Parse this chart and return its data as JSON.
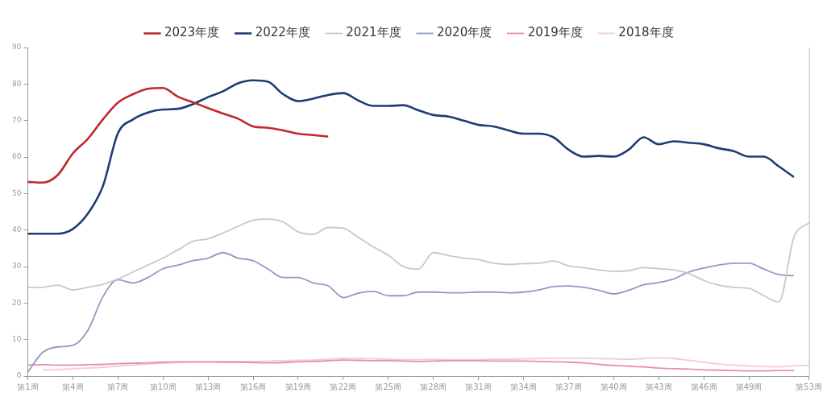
{
  "chart_data": {
    "type": "line",
    "categories": [
      "第1周",
      null,
      null,
      "第4周",
      null,
      null,
      "第7周",
      null,
      null,
      "第10周",
      null,
      null,
      "第13周",
      null,
      null,
      "第16周",
      null,
      null,
      "第19周",
      null,
      null,
      "第22周",
      null,
      null,
      "第25周",
      null,
      null,
      "第28周",
      null,
      null,
      "第31周",
      null,
      null,
      "第34周",
      null,
      null,
      "第37周",
      null,
      null,
      "第40周",
      null,
      null,
      "第43周",
      null,
      null,
      "第46周",
      null,
      null,
      "第49周",
      null,
      null,
      null,
      "第53周"
    ],
    "series": [
      {
        "name": "2023年度",
        "color": "#c0282d",
        "values": [
          53.2,
          53,
          55.1,
          61,
          65,
          70.3,
          74.9,
          77.2,
          78.7,
          78.9,
          76.5,
          75,
          73.4,
          71.9,
          70.5,
          68.4,
          68,
          67.3,
          66.4,
          66,
          65.6,
          null,
          null,
          null,
          null,
          null,
          null,
          null,
          null,
          null,
          null,
          null,
          null,
          null,
          null,
          null,
          null,
          null,
          null,
          null,
          null,
          null,
          null,
          null,
          null,
          null,
          null,
          null,
          null,
          null,
          null,
          null,
          null
        ]
      },
      {
        "name": "2022年度",
        "color": "#1f3d73",
        "values": [
          39,
          39,
          39,
          40.3,
          44.5,
          52,
          66.5,
          70.3,
          72.2,
          73,
          73.2,
          74.5,
          76.4,
          78,
          80.2,
          81,
          80.6,
          77.2,
          75.3,
          76,
          77,
          77.5,
          75.5,
          74,
          74,
          74.2,
          72.8,
          71.5,
          71.1,
          70,
          68.8,
          68.4,
          67.3,
          66.4,
          66.4,
          65.4,
          62,
          60.1,
          60.3,
          60.1,
          62,
          65.4,
          63.5,
          64.3,
          63.9,
          63.5,
          62.4,
          61.6,
          60.1,
          60.1,
          57.4,
          54.5,
          null
        ]
      },
      {
        "name": "2021年度",
        "color": "#c8c8c8",
        "values": [
          24.3,
          24.3,
          24.9,
          23.6,
          24.3,
          25.1,
          26.6,
          28.5,
          30.4,
          32.3,
          34.6,
          36.9,
          37.6,
          39.2,
          41,
          42.7,
          43,
          42.2,
          39.5,
          38.8,
          40.7,
          40.5,
          38,
          35.4,
          33.1,
          30,
          29.3,
          33.8,
          33,
          32.3,
          31.9,
          30.9,
          30.6,
          30.8,
          30.9,
          31.5,
          30.2,
          29.7,
          29.1,
          28.7,
          28.9,
          29.7,
          29.4,
          29.1,
          28.1,
          26.2,
          24.9,
          24.3,
          24,
          22,
          20.3,
          38,
          42
        ]
      },
      {
        "name": "2020年度",
        "color": "#8d9cc4",
        "values": [
          1.1,
          6.5,
          8,
          8.4,
          12.5,
          21.7,
          26.4,
          25.5,
          27,
          29.4,
          30.4,
          31.6,
          32.3,
          33.8,
          32.3,
          31.6,
          29.3,
          27,
          27,
          25.5,
          24.7,
          21.5,
          22.7,
          23.2,
          22,
          22,
          23,
          23,
          22.8,
          22.8,
          23,
          23,
          22.8,
          23,
          23.6,
          24.5,
          24.7,
          24.3,
          23.5,
          22.5,
          23.5,
          25,
          25.6,
          26.6,
          28.5,
          29.6,
          30.4,
          30.9,
          30.9,
          29.3,
          27.8,
          27.5,
          null
        ]
      },
      {
        "name": "2019年度",
        "color": "#e8909f",
        "values": [
          3,
          3.1,
          3,
          3,
          3.1,
          3.2,
          3.4,
          3.5,
          3.6,
          3.8,
          3.9,
          3.9,
          3.9,
          3.8,
          3.8,
          3.7,
          3.6,
          3.7,
          3.9,
          4,
          4.2,
          4.4,
          4.3,
          4.2,
          4.2,
          4.1,
          4,
          4.1,
          4.2,
          4.2,
          4.2,
          4.1,
          4.1,
          4.1,
          4,
          3.9,
          3.8,
          3.6,
          3.2,
          2.9,
          2.7,
          2.5,
          2.2,
          2,
          1.9,
          1.7,
          1.6,
          1.5,
          1.4,
          1.4,
          1.5,
          1.5,
          null
        ]
      },
      {
        "name": "2018年度",
        "color": "#f2cbd3",
        "values": [
          null,
          1.7,
          1.8,
          2,
          2.2,
          2.4,
          2.7,
          3,
          3.3,
          3.5,
          3.7,
          3.8,
          3.9,
          4,
          4,
          4,
          4.1,
          4.2,
          4.3,
          4.4,
          4.6,
          4.9,
          4.8,
          4.7,
          4.6,
          4.5,
          4.5,
          4.6,
          4.5,
          4.5,
          4.5,
          4.6,
          4.6,
          4.7,
          4.8,
          4.9,
          4.9,
          4.9,
          4.8,
          4.7,
          4.6,
          4.8,
          5,
          4.8,
          4.3,
          3.8,
          3.3,
          3,
          2.8,
          2.6,
          2.5,
          2.8,
          2.9
        ]
      }
    ],
    "ylim": [
      0,
      90
    ],
    "yticks": [
      0,
      10,
      20,
      30,
      40,
      50,
      60,
      70,
      80,
      90
    ],
    "grid": false,
    "legend": "top",
    "marker": "none",
    "line_style": "solid"
  }
}
